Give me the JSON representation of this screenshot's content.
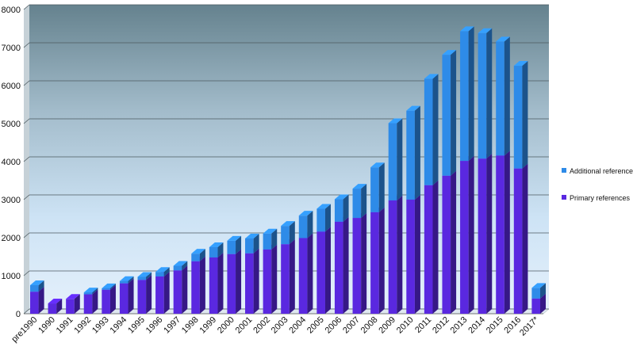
{
  "chart_data": {
    "type": "bar",
    "stacked": true,
    "title": "",
    "xlabel": "",
    "ylabel": "",
    "ylim": [
      0,
      8000
    ],
    "yticks": [
      0,
      1000,
      2000,
      3000,
      4000,
      5000,
      6000,
      7000,
      8000
    ],
    "grid": true,
    "legend_position": "right",
    "categories": [
      "pre1990",
      "1990",
      "1991",
      "1992",
      "1993",
      "1994",
      "1995",
      "1996",
      "1997",
      "1998",
      "1999",
      "2000",
      "2001",
      "2002",
      "2003",
      "2004",
      "2005",
      "2006",
      "2007",
      "2008",
      "2009",
      "2010",
      "2011",
      "2012",
      "2013",
      "2014",
      "2015",
      "2016",
      "2017*"
    ],
    "series": [
      {
        "name": "Primary references",
        "color": "#5a28e0",
        "values": [
          580,
          270,
          390,
          510,
          630,
          800,
          890,
          980,
          1140,
          1380,
          1480,
          1570,
          1590,
          1690,
          1830,
          1990,
          2160,
          2420,
          2520,
          2670,
          2980,
          3000,
          3380,
          3630,
          4020,
          4080,
          4160,
          3820,
          400
        ]
      },
      {
        "name": "Additional references",
        "color": "#2e8be8",
        "values": [
          170,
          0,
          0,
          50,
          40,
          60,
          80,
          120,
          120,
          200,
          270,
          350,
          390,
          420,
          480,
          590,
          600,
          590,
          770,
          1180,
          2030,
          2340,
          2800,
          3180,
          3410,
          3300,
          3000,
          2700,
          280
        ]
      }
    ]
  }
}
